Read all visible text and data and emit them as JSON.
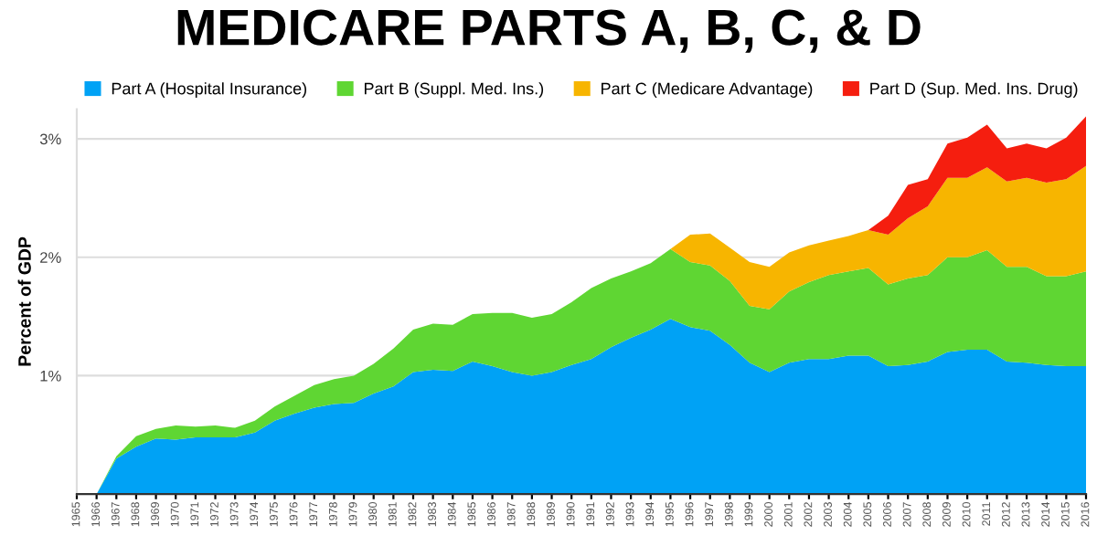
{
  "chart_data": {
    "type": "area",
    "stacked": true,
    "title": "MEDICARE PARTS A, B, C, & D",
    "ylabel": "Percent of GDP",
    "categories": [
      "1965",
      "1966",
      "1967",
      "1968",
      "1969",
      "1970",
      "1971",
      "1972",
      "1973",
      "1974",
      "1975",
      "1976",
      "1977",
      "1978",
      "1979",
      "1980",
      "1981",
      "1982",
      "1983",
      "1984",
      "1985",
      "1986",
      "1987",
      "1988",
      "1989",
      "1990",
      "1991",
      "1992",
      "1993",
      "1994",
      "1995",
      "1996",
      "1997",
      "1998",
      "1999",
      "2000",
      "2001",
      "2002",
      "2003",
      "2004",
      "2005",
      "2006",
      "2007",
      "2008",
      "2009",
      "2010",
      "2011",
      "2012",
      "2013",
      "2014",
      "2015",
      "2016"
    ],
    "series": [
      {
        "name": "Part A (Hospital Insurance)",
        "color": "#00a2f5",
        "values": [
          0,
          0,
          0.3,
          0.4,
          0.47,
          0.46,
          0.48,
          0.48,
          0.48,
          0.52,
          0.62,
          0.68,
          0.73,
          0.76,
          0.77,
          0.85,
          0.91,
          1.03,
          1.05,
          1.04,
          1.12,
          1.08,
          1.03,
          1.0,
          1.03,
          1.09,
          1.14,
          1.24,
          1.32,
          1.39,
          1.48,
          1.41,
          1.38,
          1.26,
          1.11,
          1.03,
          1.11,
          1.14,
          1.14,
          1.17,
          1.17,
          1.08,
          1.09,
          1.12,
          1.2,
          1.22,
          1.22,
          1.12,
          1.11,
          1.09,
          1.08,
          1.08
        ]
      },
      {
        "name": "Part B (Suppl. Med. Ins.)",
        "color": "#5fd633",
        "values": [
          0,
          0,
          0.02,
          0.09,
          0.08,
          0.12,
          0.09,
          0.1,
          0.08,
          0.1,
          0.12,
          0.15,
          0.19,
          0.21,
          0.23,
          0.25,
          0.32,
          0.36,
          0.39,
          0.39,
          0.4,
          0.45,
          0.5,
          0.49,
          0.49,
          0.53,
          0.6,
          0.58,
          0.56,
          0.56,
          0.59,
          0.55,
          0.55,
          0.54,
          0.48,
          0.53,
          0.6,
          0.65,
          0.71,
          0.71,
          0.74,
          0.69,
          0.73,
          0.73,
          0.8,
          0.78,
          0.84,
          0.8,
          0.81,
          0.75,
          0.76,
          0.8
        ]
      },
      {
        "name": "Part C (Medicare Advantage)",
        "color": "#f7b500",
        "values": [
          0,
          0,
          0,
          0,
          0,
          0,
          0,
          0,
          0,
          0,
          0,
          0,
          0,
          0,
          0,
          0,
          0,
          0,
          0,
          0,
          0,
          0,
          0,
          0,
          0,
          0,
          0,
          0,
          0,
          0,
          0,
          0.23,
          0.27,
          0.28,
          0.37,
          0.36,
          0.33,
          0.31,
          0.29,
          0.3,
          0.32,
          0.42,
          0.51,
          0.58,
          0.67,
          0.67,
          0.7,
          0.72,
          0.75,
          0.79,
          0.82,
          0.89
        ]
      },
      {
        "name": "Part D (Sup. Med. Ins. Drug)",
        "color": "#f51e0f",
        "values": [
          0,
          0,
          0,
          0,
          0,
          0,
          0,
          0,
          0,
          0,
          0,
          0,
          0,
          0,
          0,
          0,
          0,
          0,
          0,
          0,
          0,
          0,
          0,
          0,
          0,
          0,
          0,
          0,
          0,
          0,
          0,
          0,
          0,
          0,
          0,
          0,
          0,
          0,
          0,
          0,
          0,
          0.16,
          0.28,
          0.23,
          0.29,
          0.34,
          0.36,
          0.28,
          0.29,
          0.29,
          0.35,
          0.42
        ]
      }
    ],
    "ylim": [
      0,
      3.25
    ],
    "yticks": [
      {
        "value": 1,
        "label": "1%"
      },
      {
        "value": 2,
        "label": "2%"
      },
      {
        "value": 3,
        "label": "3%"
      }
    ],
    "grid": "y",
    "legend": "top"
  }
}
